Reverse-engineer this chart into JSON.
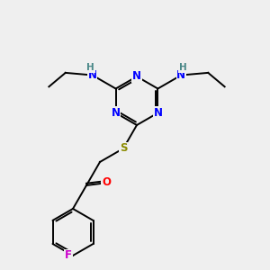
{
  "bg_color": "#efefef",
  "atom_colors": {
    "N": "#0000ff",
    "H": "#4a8888",
    "S": "#8b8b00",
    "O": "#ff0000",
    "F": "#cc00cc",
    "C": "#000000"
  },
  "bond_color": "#000000",
  "figsize": [
    3.0,
    3.0
  ],
  "dpi": 100,
  "lw": 1.4,
  "fs": 8.5
}
